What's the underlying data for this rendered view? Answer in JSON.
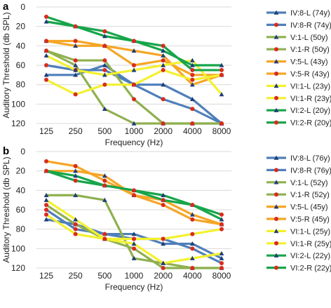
{
  "colors": {
    "blue": "#4f7fba",
    "olive": "#8fb04f",
    "orange": "#f5a626",
    "yellow": "#f3f12e",
    "green": "#17a54a",
    "triangle_marker": "#1f3e78",
    "circle_marker": "#d92b1c",
    "grid": "#d9d9d9"
  },
  "chart_data": [
    {
      "type": "line",
      "panel_label": "a",
      "xlabel": "Frequency (Hz)",
      "ylabel": "Auditory Threshold (db SPL)",
      "x": [
        125,
        250,
        500,
        1000,
        2000,
        4000,
        8000
      ],
      "x_scale": "log2 (categorical octave steps)",
      "ylim": [
        120,
        0
      ],
      "y_inverted": true,
      "yticks": [
        0,
        20,
        40,
        60,
        80,
        100,
        120
      ],
      "grid": "horizontal",
      "legend_position": "right",
      "series": [
        {
          "name": "IV:8-L (74y)",
          "color": "blue",
          "marker": "triangle",
          "values": [
            70,
            70,
            60,
            80,
            80,
            95,
            120
          ]
        },
        {
          "name": "IV:8-R (74y)",
          "color": "blue",
          "marker": "circle",
          "values": [
            60,
            65,
            65,
            80,
            95,
            105,
            120
          ]
        },
        {
          "name": "V:1-L (50y)",
          "color": "olive",
          "marker": "triangle",
          "values": [
            45,
            60,
            105,
            120,
            120,
            120,
            120
          ]
        },
        {
          "name": "V:1-R (50y)",
          "color": "olive",
          "marker": "circle",
          "values": [
            45,
            55,
            55,
            95,
            120,
            120,
            120
          ]
        },
        {
          "name": "V:5-L (43y)",
          "color": "orange",
          "marker": "triangle",
          "values": [
            35,
            40,
            40,
            45,
            50,
            80,
            70
          ]
        },
        {
          "name": "V:5-R (43y)",
          "color": "orange",
          "marker": "circle",
          "values": [
            35,
            35,
            40,
            60,
            55,
            70,
            70
          ]
        },
        {
          "name": "VI:1-L (23y)",
          "color": "yellow",
          "marker": "triangle",
          "values": [
            50,
            65,
            70,
            65,
            60,
            55,
            90
          ]
        },
        {
          "name": "VI:1-R (23y)",
          "color": "yellow",
          "marker": "circle",
          "values": [
            75,
            90,
            80,
            80,
            65,
            75,
            70
          ]
        },
        {
          "name": "VI:2-L (20y)",
          "color": "green",
          "marker": "triangle",
          "values": [
            15,
            20,
            30,
            35,
            45,
            60,
            60
          ]
        },
        {
          "name": "VI:2-R (20y)",
          "color": "green",
          "marker": "circle",
          "values": [
            10,
            20,
            25,
            35,
            40,
            65,
            65
          ]
        }
      ]
    },
    {
      "type": "line",
      "panel_label": "b",
      "xlabel": "Frequency (Hz)",
      "ylabel": "Auditory Threshold (db SPL)",
      "x": [
        125,
        250,
        500,
        1000,
        2000,
        4000,
        8000
      ],
      "x_scale": "log2 (categorical octave steps)",
      "ylim": [
        120,
        0
      ],
      "y_inverted": true,
      "yticks": [
        0,
        20,
        40,
        60,
        80,
        100,
        120
      ],
      "grid": "horizontal",
      "legend_position": "right",
      "series": [
        {
          "name": "IV:8-L (76y)",
          "color": "blue",
          "marker": "triangle",
          "values": [
            70,
            75,
            85,
            85,
            95,
            95,
            110
          ]
        },
        {
          "name": "IV:8-R (76y)",
          "color": "blue",
          "marker": "circle",
          "values": [
            60,
            80,
            85,
            90,
            90,
            100,
            115
          ]
        },
        {
          "name": "V:1-L (52y)",
          "color": "olive",
          "marker": "triangle",
          "values": [
            45,
            45,
            50,
            110,
            115,
            120,
            120
          ]
        },
        {
          "name": "V:1-R (52y)",
          "color": "olive",
          "marker": "circle",
          "values": [
            55,
            75,
            90,
            100,
            120,
            120,
            120
          ]
        },
        {
          "name": "V:5-L (45y)",
          "color": "orange",
          "marker": "triangle",
          "values": [
            20,
            20,
            25,
            45,
            50,
            65,
            75
          ]
        },
        {
          "name": "V:5-R (45y)",
          "color": "orange",
          "marker": "circle",
          "values": [
            10,
            15,
            30,
            45,
            55,
            70,
            75
          ]
        },
        {
          "name": "VI:1-L (25y)",
          "color": "yellow",
          "marker": "triangle",
          "values": [
            50,
            70,
            90,
            95,
            115,
            110,
            105
          ]
        },
        {
          "name": "VI:1-R (25y)",
          "color": "yellow",
          "marker": "circle",
          "values": [
            65,
            85,
            90,
            90,
            90,
            85,
            80
          ]
        },
        {
          "name": "VI:2-L (22y)",
          "color": "green",
          "marker": "triangle",
          "values": [
            20,
            25,
            35,
            40,
            45,
            55,
            70
          ]
        },
        {
          "name": "VI:2-R (22y)",
          "color": "green",
          "marker": "circle",
          "values": [
            20,
            30,
            35,
            40,
            50,
            55,
            65
          ]
        }
      ]
    }
  ]
}
